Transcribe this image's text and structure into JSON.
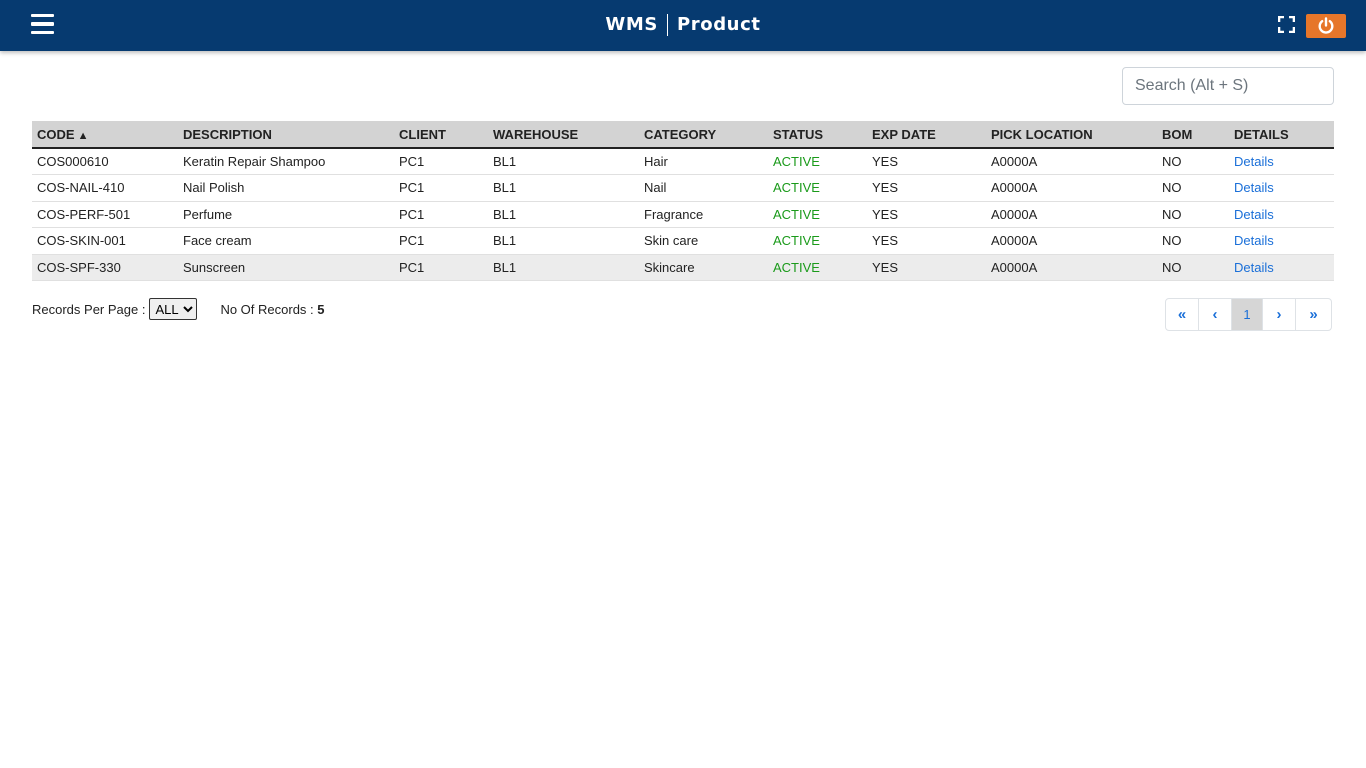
{
  "header": {
    "app_name": "WMS",
    "page_title": "Product",
    "menu_icon": "hamburger-menu-icon",
    "fullscreen_icon": "fullscreen-icon",
    "power_icon": "power-icon",
    "colors": {
      "bar": "#063a70",
      "power_button": "#e6762a"
    }
  },
  "search": {
    "placeholder": "Search (Alt + S)",
    "value": ""
  },
  "table": {
    "columns": [
      "CODE",
      "DESCRIPTION",
      "CLIENT",
      "WAREHOUSE",
      "CATEGORY",
      "STATUS",
      "EXP DATE",
      "PICK LOCATION",
      "BOM",
      "DETAILS"
    ],
    "sort_indicator": "▲",
    "rows": [
      {
        "code": "COS000610",
        "description": "Keratin Repair Shampoo",
        "client": "PC1",
        "warehouse": "BL1",
        "category": "Hair",
        "status": "ACTIVE",
        "exp_date": "YES",
        "pick_location": "A0000A",
        "bom": "NO",
        "details": "Details"
      },
      {
        "code": "COS-NAIL-410",
        "description": "Nail Polish",
        "client": "PC1",
        "warehouse": "BL1",
        "category": "Nail",
        "status": "ACTIVE",
        "exp_date": "YES",
        "pick_location": "A0000A",
        "bom": "NO",
        "details": "Details"
      },
      {
        "code": "COS-PERF-501",
        "description": "Perfume",
        "client": "PC1",
        "warehouse": "BL1",
        "category": "Fragrance",
        "status": "ACTIVE",
        "exp_date": "YES",
        "pick_location": "A0000A",
        "bom": "NO",
        "details": "Details"
      },
      {
        "code": "COS-SKIN-001",
        "description": "Face cream",
        "client": "PC1",
        "warehouse": "BL1",
        "category": "Skin care",
        "status": "ACTIVE",
        "exp_date": "YES",
        "pick_location": "A0000A",
        "bom": "NO",
        "details": "Details"
      },
      {
        "code": "COS-SPF-330",
        "description": "Sunscreen",
        "client": "PC1",
        "warehouse": "BL1",
        "category": "Skincare",
        "status": "ACTIVE",
        "exp_date": "YES",
        "pick_location": "A0000A",
        "bom": "NO",
        "details": "Details"
      }
    ],
    "status_color": "#1a9a1a",
    "link_color": "#1a6fd8"
  },
  "footer": {
    "records_per_page_label": "Records Per Page :",
    "records_per_page_value": "ALL",
    "records_label": "No Of Records :",
    "records_count": "5"
  },
  "pagination": {
    "first_label": "«",
    "prev_label": "‹",
    "current_page": "1",
    "next_label": "›",
    "last_label": "»"
  }
}
